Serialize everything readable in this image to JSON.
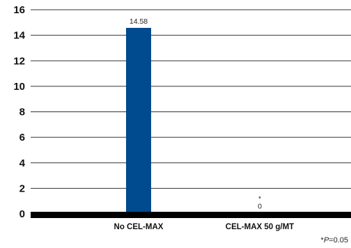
{
  "chart_data": {
    "type": "bar",
    "categories": [
      "No CEL-MAX",
      "CEL-MAX 50 g/MT"
    ],
    "values": [
      14.58,
      0
    ],
    "data_labels": [
      "14.58",
      "0"
    ],
    "annotations": [
      "",
      "*"
    ],
    "ylim": [
      0,
      16
    ],
    "yticks": [
      0,
      2,
      4,
      6,
      8,
      10,
      12,
      14,
      16
    ],
    "grid": true,
    "bar_color": "#004a8f",
    "footnote": {
      "star": "*",
      "p_symbol": "P",
      "p_value": "=0.05"
    }
  }
}
